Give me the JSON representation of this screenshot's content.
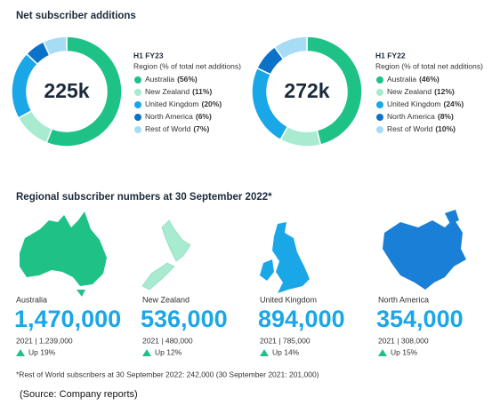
{
  "section_title": "Net subscriber additions",
  "chart_data": [
    {
      "type": "pie",
      "donut": true,
      "center_label": "225k",
      "legend_title": "H1 FY23",
      "legend_subtitle": "Region (% of total net additions)",
      "categories": [
        "Australia",
        "New Zealand",
        "United Kingdom",
        "North America",
        "Rest of World"
      ],
      "values": [
        56,
        11,
        20,
        6,
        7
      ],
      "value_labels": [
        "(56%)",
        "(11%)",
        "(20%)",
        "(6%)",
        "(7%)"
      ],
      "colors": [
        "#1fc286",
        "#a8ebd0",
        "#1aa7e8",
        "#0a73c9",
        "#a6dcf5"
      ]
    },
    {
      "type": "pie",
      "donut": true,
      "center_label": "272k",
      "legend_title": "H1 FY22",
      "legend_subtitle": "Region (% of total net additions)",
      "categories": [
        "Australia",
        "New Zealand",
        "United Kingdom",
        "North America",
        "Rest of World"
      ],
      "values": [
        46,
        12,
        24,
        8,
        10
      ],
      "value_labels": [
        "(46%)",
        "(12%)",
        "(24%)",
        "(8%)",
        "(10%)"
      ],
      "colors": [
        "#1fc286",
        "#a8ebd0",
        "#1aa7e8",
        "#0a73c9",
        "#a6dcf5"
      ]
    }
  ],
  "regional_title": "Regional subscriber numbers at 30 September 2022*",
  "regions": [
    {
      "name": "Australia",
      "value": "1,470,000",
      "prior": "2021 | 1,239,000",
      "change": "Up 19%"
    },
    {
      "name": "New Zealand",
      "value": "536,000",
      "prior": "2021 | 480,000",
      "change": "Up 12%"
    },
    {
      "name": "United Kingdom",
      "value": "894,000",
      "prior": "2021 | 785,000",
      "change": "Up 14%"
    },
    {
      "name": "North America",
      "value": "354,000",
      "prior": "2021 | 308,000",
      "change": "Up 15%"
    }
  ],
  "footnote": "*Rest of World subscribers at 30 September 2022: 242,000 (30 September 2021: 201,000)",
  "source": "(Source: Company reports)"
}
